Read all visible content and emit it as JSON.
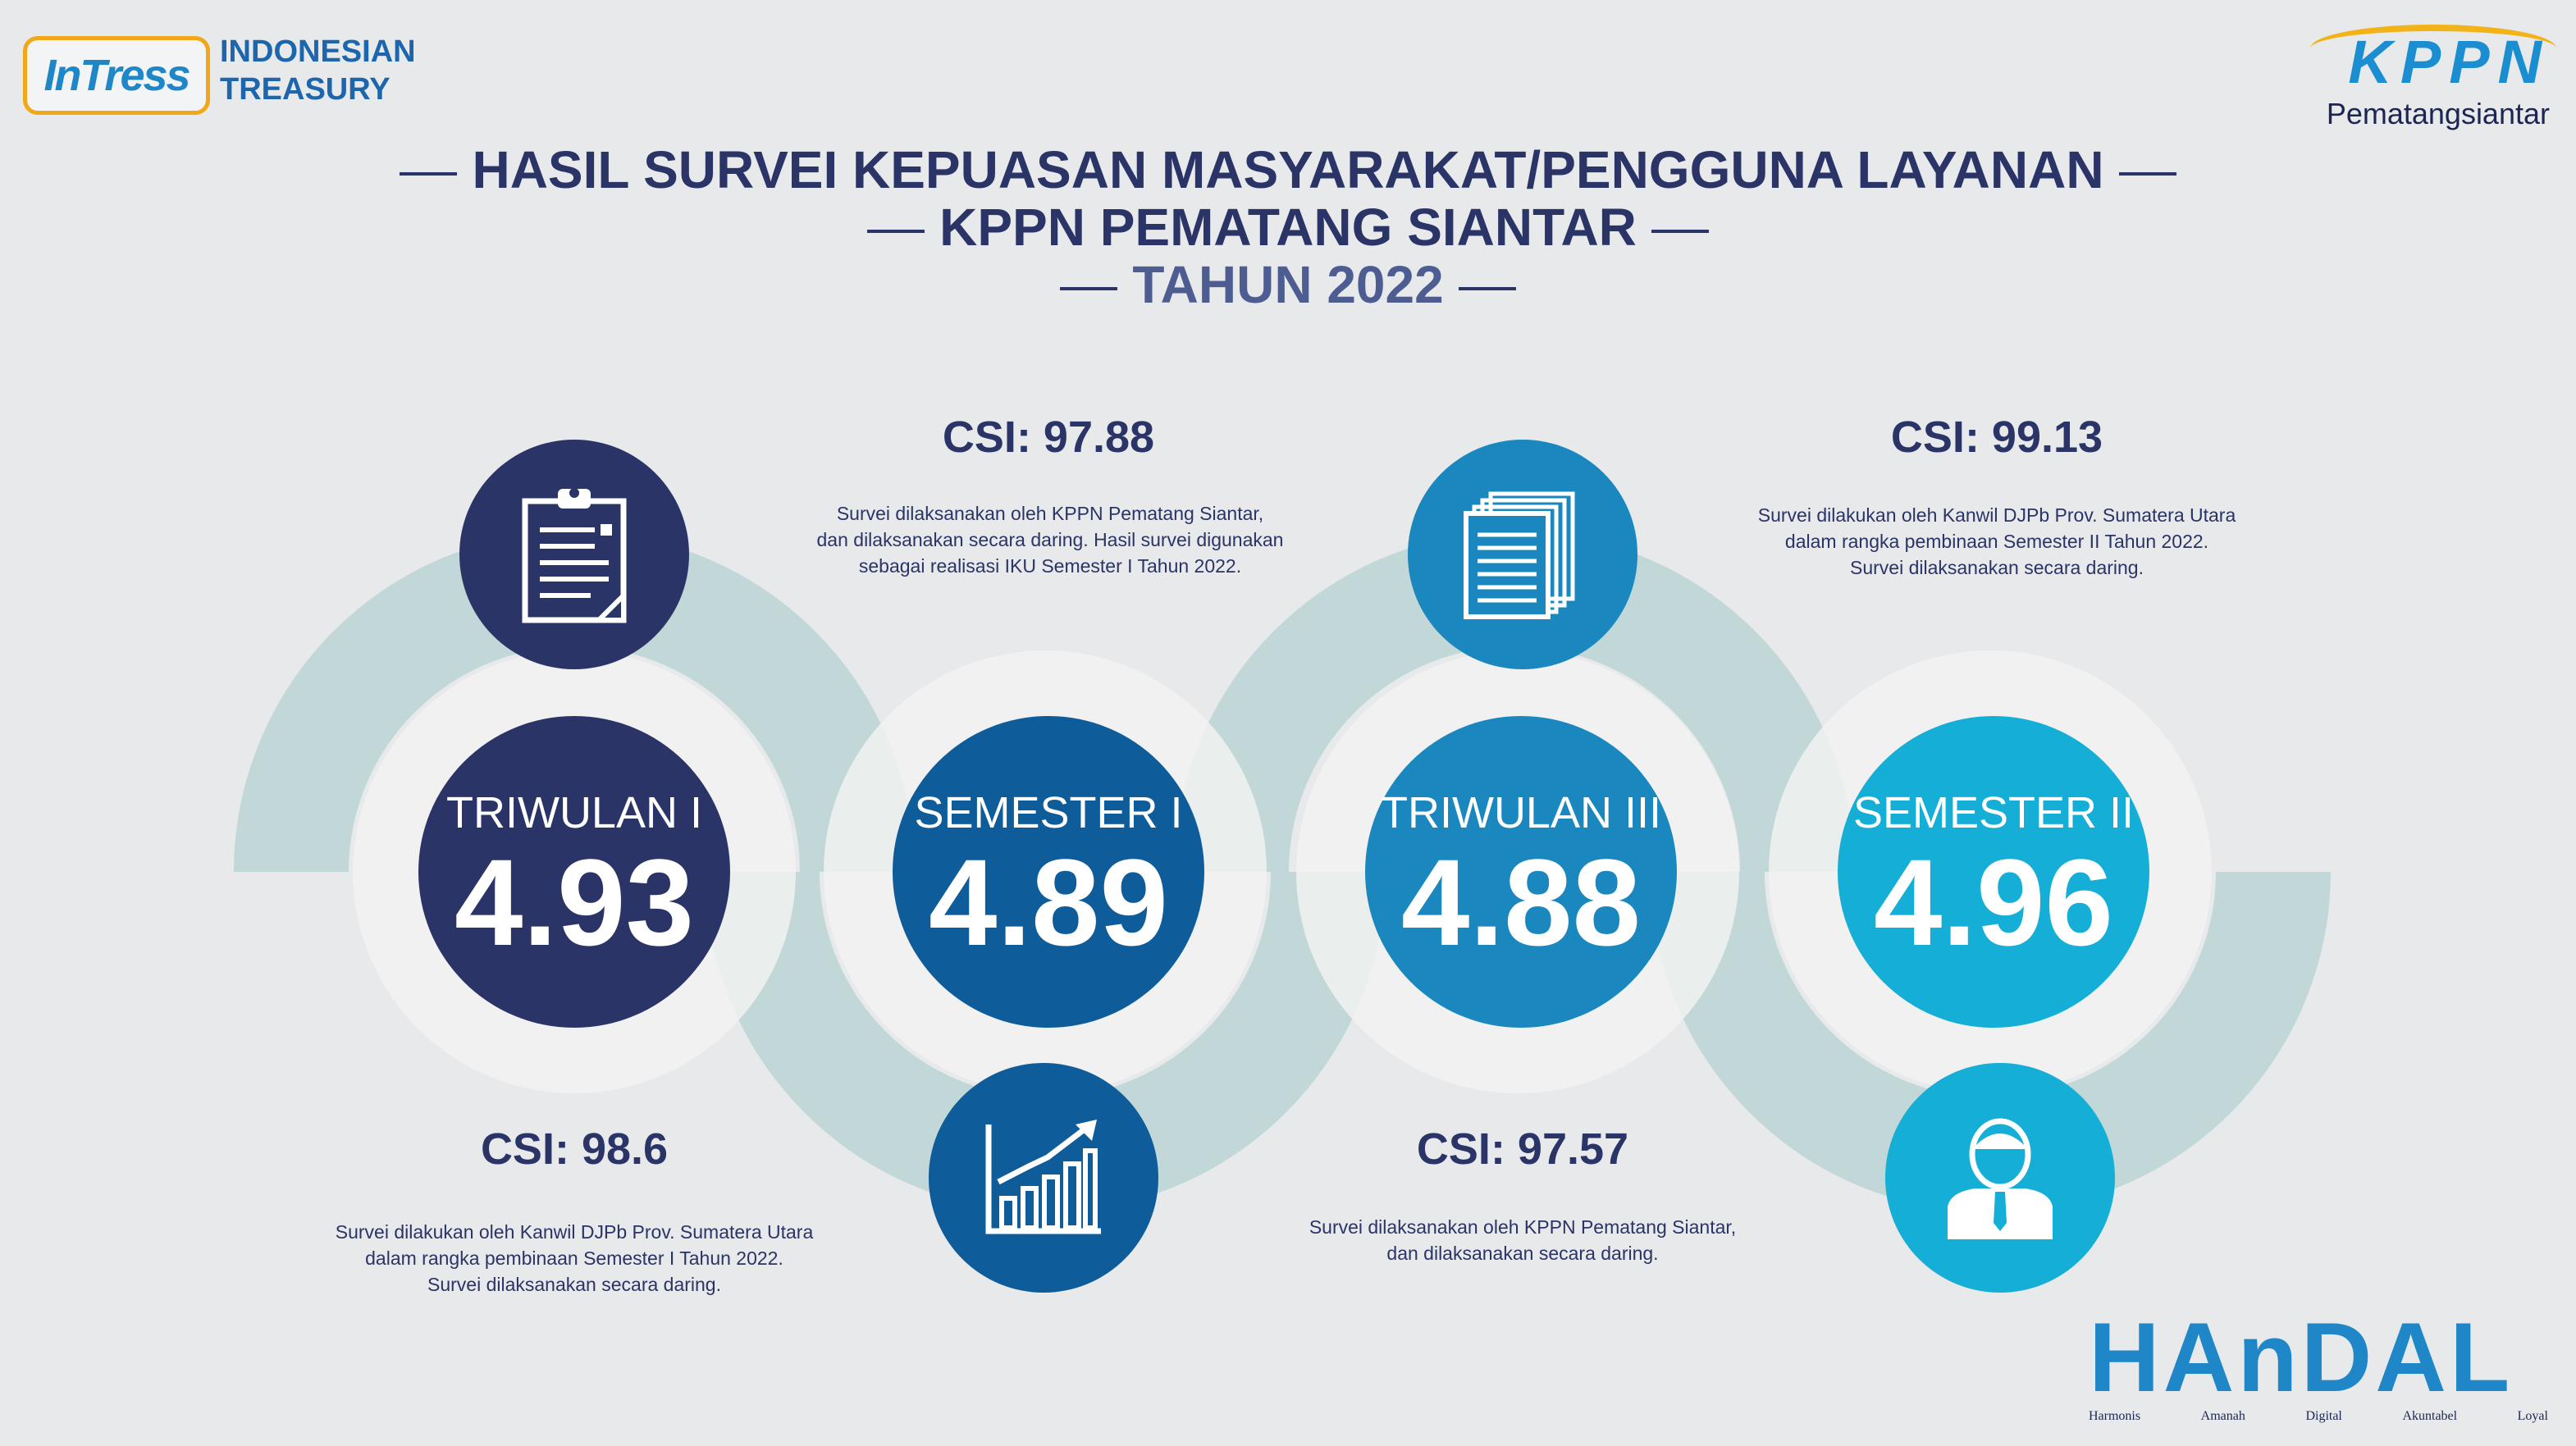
{
  "header": {
    "intress_logo": "InTress",
    "org_name_line1": "INDONESIAN",
    "org_name_line2": "TREASURY",
    "kppn_logo": "KPPN",
    "kppn_sub": "Pematangsiantar"
  },
  "title": {
    "line1": "HASIL SURVEI KEPUASAN MASYARAKAT/PENGGUNA LAYANAN",
    "line2": "KPPN PEMATANG SIANTAR",
    "line3": "TAHUN 2022"
  },
  "periods": [
    {
      "label": "TRIWULAN I",
      "score": "4.93",
      "csi": "CSI: 98.6",
      "desc_lines": [
        "Survei dilakukan oleh Kanwil DJPb Prov. Sumatera Utara",
        "dalam rangka pembinaan Semester I Tahun 2022.",
        "Survei dilaksanakan secara daring."
      ],
      "color": "#2a3466",
      "icon": "clipboard-icon"
    },
    {
      "label": "SEMESTER I",
      "score": "4.89",
      "csi": "CSI: 97.88",
      "desc_lines": [
        "Survei dilaksanakan oleh KPPN Pematang Siantar,",
        "dan dilaksanakan secara daring. Hasil survei digunakan",
        "sebagai realisasi IKU Semester I Tahun 2022."
      ],
      "color": "#0f5c9a",
      "icon": "chart-growth-icon"
    },
    {
      "label": "TRIWULAN III",
      "score": "4.88",
      "csi": "CSI: 97.57",
      "desc_lines": [
        "Survei dilaksanakan oleh KPPN Pematang Siantar,",
        "dan dilaksanakan secara daring."
      ],
      "color": "#1a87bf",
      "icon": "documents-icon"
    },
    {
      "label": "SEMESTER II",
      "score": "4.96",
      "csi": "CSI: 99.13",
      "desc_lines": [
        "Survei dilakukan oleh Kanwil DJPb Prov. Sumatera Utara",
        "dalam rangka pembinaan Semester II Tahun 2022.",
        "Survei dilaksanakan secara daring."
      ],
      "color": "#14aed6",
      "icon": "person-icon"
    }
  ],
  "footer": {
    "handal_logo": "HAnDAL",
    "values": [
      "Harmonis",
      "Amanah",
      "Digital",
      "Akuntabel",
      "Loyal"
    ]
  }
}
